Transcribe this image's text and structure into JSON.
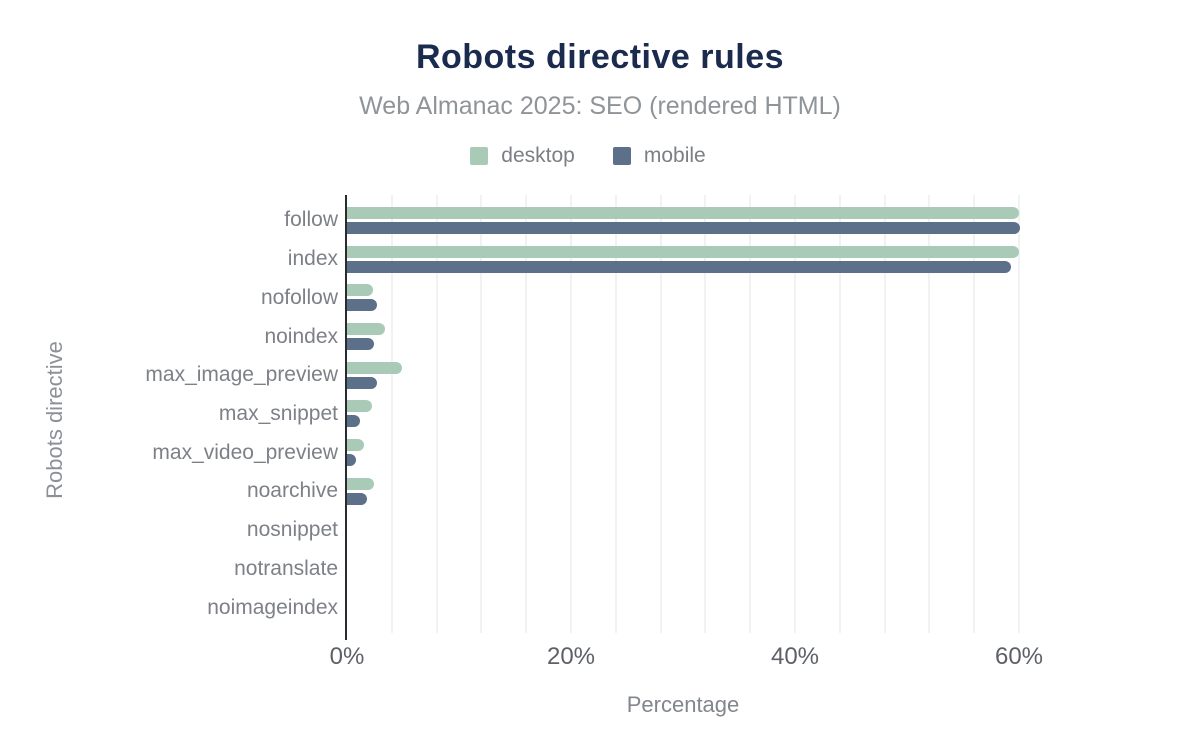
{
  "header": {
    "title": "Robots directive rules",
    "subtitle": "Web Almanac 2025: SEO (rendered HTML)"
  },
  "legend": [
    {
      "label": "desktop",
      "color": "#a8cab7"
    },
    {
      "label": "mobile",
      "color": "#5d7089"
    }
  ],
  "chart_data": {
    "type": "bar",
    "orientation": "horizontal",
    "title": "Robots directive rules",
    "subtitle": "Web Almanac 2025: SEO (rendered HTML)",
    "xlabel": "Percentage",
    "ylabel": "Robots directive",
    "xlim": [
      0,
      60
    ],
    "x_ticks": [
      "0%",
      "20%",
      "40%",
      "60%"
    ],
    "x_tick_values": [
      0,
      20,
      40,
      60
    ],
    "gridline_interval": 4,
    "grid": "vertical-only",
    "legend_position": "top",
    "categories": [
      "follow",
      "index",
      "nofollow",
      "noindex",
      "max_image_preview",
      "max_snippet",
      "max_video_preview",
      "noarchive",
      "nosnippet",
      "notranslate",
      "noimageindex"
    ],
    "series": [
      {
        "name": "desktop",
        "color": "#a8cab7",
        "values": [
          60.0,
          60.0,
          2.3,
          3.4,
          4.9,
          2.2,
          1.5,
          2.4,
          0,
          0,
          0
        ]
      },
      {
        "name": "mobile",
        "color": "#5d7089",
        "values": [
          60.1,
          59.3,
          2.7,
          2.4,
          2.7,
          1.2,
          0.8,
          1.8,
          0,
          0,
          0
        ]
      }
    ]
  },
  "colors": {
    "title": "#1b2b4d",
    "subtitle_text": "#8f9499",
    "axis_line": "#282c31",
    "gridline": "#f2f2f2",
    "tick_text": "#5d6167",
    "category_text": "#7d8187"
  }
}
